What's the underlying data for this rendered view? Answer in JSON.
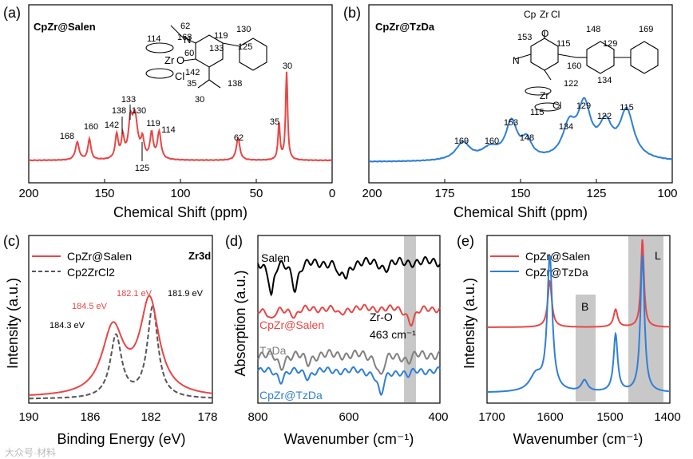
{
  "panels": {
    "a": {
      "label": "(a)",
      "title": "CpZr@Salen",
      "xlabel": "Chemical Shift (ppm)",
      "xticks": [
        "200",
        "150",
        "100",
        "50",
        "0"
      ],
      "peaks": [
        "168",
        "160",
        "142",
        "138",
        "133",
        "130",
        "125",
        "119",
        "114",
        "62",
        "35",
        "30"
      ]
    },
    "b": {
      "label": "(b)",
      "title": "CpZr@TzDa",
      "xlabel": "Chemical Shift (ppm)",
      "xticks": [
        "200",
        "175",
        "150",
        "125",
        "100"
      ],
      "peaks": [
        "169",
        "160",
        "153",
        "148",
        "134",
        "129",
        "122",
        "115"
      ]
    },
    "c": {
      "label": "(c)",
      "tag": "Zr3d",
      "xlabel": "Binding Energy (eV)",
      "ylabel": "Intensity (a.u.)",
      "xticks": [
        "190",
        "186",
        "182",
        "178"
      ],
      "legend": [
        "CpZr@Salen",
        "Cp2ZrCl2"
      ],
      "peaks": [
        "184.5 eV",
        "182.1 eV",
        "184.3 eV",
        "181.9 eV"
      ]
    },
    "d": {
      "label": "(d)",
      "xlabel": "Wavenumber (cm⁻¹)",
      "ylabel": "Absorption (a.u.)",
      "xticks": [
        "800",
        "600",
        "400"
      ],
      "traces": [
        "Salen",
        "CpZr@Salen",
        "TzDa",
        "CpZr@TzDa"
      ],
      "zr_label": "Zr-O",
      "zr_value": "463 cm⁻¹"
    },
    "e": {
      "label": "(e)",
      "xlabel": "Wavenumber (cm⁻¹)",
      "ylabel": "Intensity (a.u.)",
      "xticks": [
        "1700",
        "1600",
        "1500",
        "1400"
      ],
      "legend": [
        "CpZr@Salen",
        "CpZr@TzDa"
      ],
      "band_b": "B",
      "band_l": "L"
    }
  },
  "molecule": {
    "salen": [
      "62",
      "168",
      "119",
      "130",
      "133",
      "125",
      "114",
      "60",
      "142",
      "35",
      "138",
      "30",
      "Zr",
      "O",
      "Cl",
      "N"
    ],
    "tzda": [
      "Cp",
      "Zr",
      "Cl",
      "153",
      "115",
      "148",
      "129",
      "169",
      "160",
      "122",
      "134",
      "115",
      "Zr",
      "Cl",
      "O",
      "N"
    ]
  },
  "watermark": "大众号·材料",
  "colors": {
    "red": "#e84646",
    "blue": "#2f7fd6",
    "gray": "#808080",
    "black": "#000000"
  },
  "chart_data": [
    {
      "type": "line",
      "title": "CpZr@Salen",
      "xlabel": "Chemical Shift (ppm)",
      "xlim": [
        200,
        0
      ],
      "series": [
        {
          "name": "CpZr@Salen",
          "peaks_ppm": [
            168,
            160,
            142,
            138,
            133,
            130,
            125,
            119,
            114,
            62,
            35,
            30
          ]
        }
      ]
    },
    {
      "type": "line",
      "title": "CpZr@TzDa",
      "xlabel": "Chemical Shift (ppm)",
      "xlim": [
        200,
        100
      ],
      "series": [
        {
          "name": "CpZr@TzDa",
          "peaks_ppm": [
            169,
            160,
            153,
            148,
            134,
            129,
            122,
            115
          ]
        }
      ]
    },
    {
      "type": "line",
      "title": "Zr3d",
      "xlabel": "Binding Energy (eV)",
      "ylabel": "Intensity (a.u.)",
      "xlim": [
        190,
        178
      ],
      "series": [
        {
          "name": "CpZr@Salen",
          "peaks_eV": [
            184.5,
            182.1
          ]
        },
        {
          "name": "Cp2ZrCl2",
          "peaks_eV": [
            184.3,
            181.9
          ]
        }
      ]
    },
    {
      "type": "line",
      "xlabel": "Wavenumber (cm-1)",
      "ylabel": "Absorption (a.u.)",
      "xlim": [
        800,
        400
      ],
      "series": [
        {
          "name": "Salen"
        },
        {
          "name": "CpZr@Salen"
        },
        {
          "name": "TzDa"
        },
        {
          "name": "CpZr@TzDa"
        }
      ],
      "annotation": "Zr-O 463 cm-1"
    },
    {
      "type": "line",
      "xlabel": "Wavenumber (cm-1)",
      "ylabel": "Intensity (a.u.)",
      "xlim": [
        1700,
        1400
      ],
      "series": [
        {
          "name": "CpZr@Salen"
        },
        {
          "name": "CpZr@TzDa"
        }
      ],
      "bands": [
        "B",
        "L"
      ]
    }
  ]
}
